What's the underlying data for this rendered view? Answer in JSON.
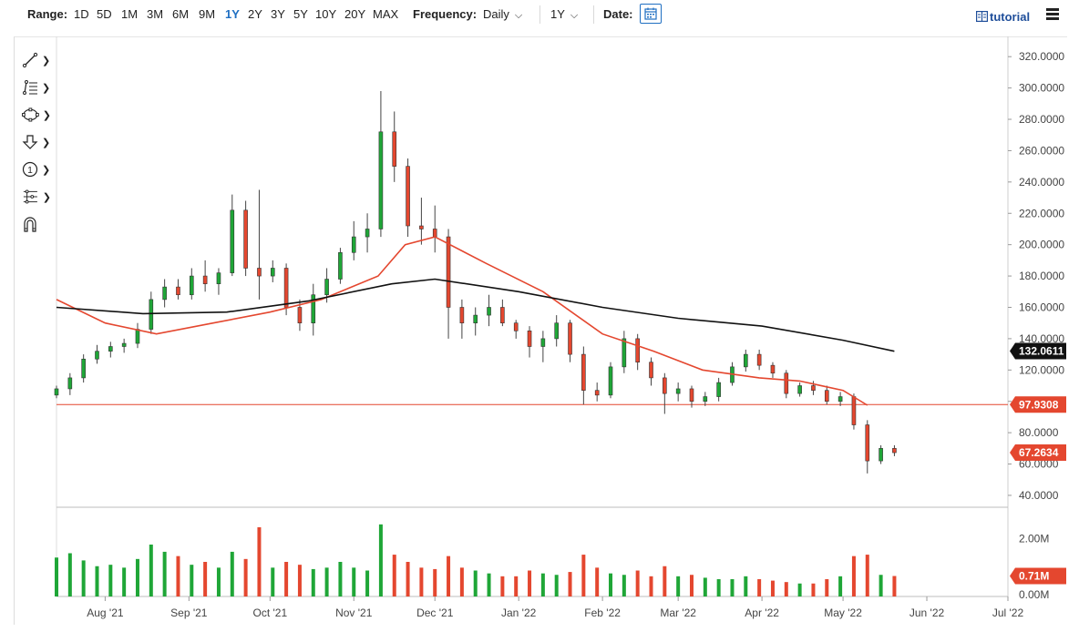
{
  "toolbar": {
    "range_label": "Range:",
    "ranges": [
      "1D",
      "5D",
      "1M",
      "3M",
      "6M",
      "9M",
      "1Y",
      "2Y",
      "3Y",
      "5Y",
      "10Y",
      "20Y",
      "MAX"
    ],
    "active_range": "1Y",
    "frequency_label": "Frequency:",
    "frequency_value": "Daily",
    "period_value": "1Y",
    "date_label": "Date:",
    "tutorial_label": "tutorial"
  },
  "tools": [
    "line-tool-icon",
    "fibonacci-tool-icon",
    "shape-tool-icon",
    "arrow-tool-icon",
    "counter-tool-icon",
    "measure-tool-icon",
    "magnet-icon"
  ],
  "colors": {
    "up": "#1fa637",
    "down": "#e4472f",
    "ma50": "#e4472f",
    "ma200": "#111111",
    "hline": "#e4472f",
    "accent": "#1f6fc2"
  },
  "chart_data": {
    "type": "candlestick",
    "x_ticks": [
      "Aug '21",
      "Sep '21",
      "Oct '21",
      "Nov '21",
      "Dec '21",
      "Jan '22",
      "Feb '22",
      "Mar '22",
      "Apr '22",
      "May '22",
      "Jun '22",
      "Jul '22"
    ],
    "x_tick_dates": [
      "2021-08-01",
      "2021-09-01",
      "2021-10-01",
      "2021-11-01",
      "2021-12-01",
      "2022-01-01",
      "2022-02-01",
      "2022-03-01",
      "2022-04-01",
      "2022-05-01",
      "2022-06-01",
      "2022-07-01"
    ],
    "y_ticks": [
      "320.0000",
      "300.0000",
      "280.0000",
      "260.0000",
      "240.0000",
      "220.0000",
      "200.0000",
      "180.0000",
      "160.0000",
      "140.0000",
      "120.0000",
      "100.0000",
      "80.0000",
      "60.0000",
      "40.0000"
    ],
    "ylim": [
      33,
      330
    ],
    "volume_ticks": [
      "2.00M",
      "0.00M"
    ],
    "volume_lim": [
      0,
      3.0
    ],
    "labels": {
      "ma200_last": "132.0611",
      "hline": "97.9308",
      "last_price": "67.2634",
      "last_volume": "0.71M"
    },
    "horizontal_line": 97.9308,
    "ma50_points": [
      [
        "2021-07-14",
        165
      ],
      [
        "2021-08-01",
        150
      ],
      [
        "2021-08-20",
        143
      ],
      [
        "2021-09-10",
        150
      ],
      [
        "2021-10-01",
        157
      ],
      [
        "2021-10-20",
        165
      ],
      [
        "2021-11-10",
        180
      ],
      [
        "2021-11-20",
        200
      ],
      [
        "2021-12-01",
        205
      ],
      [
        "2021-12-20",
        188
      ],
      [
        "2022-01-10",
        170
      ],
      [
        "2022-02-01",
        143
      ],
      [
        "2022-02-20",
        132
      ],
      [
        "2022-03-10",
        120
      ],
      [
        "2022-03-31",
        115
      ],
      [
        "2022-04-15",
        113
      ],
      [
        "2022-05-01",
        107
      ],
      [
        "2022-05-10",
        97.5
      ]
    ],
    "ma200_points": [
      [
        "2021-07-14",
        160
      ],
      [
        "2021-08-15",
        156
      ],
      [
        "2021-09-15",
        157
      ],
      [
        "2021-10-15",
        164
      ],
      [
        "2021-11-15",
        175
      ],
      [
        "2021-12-01",
        178
      ],
      [
        "2022-01-01",
        170
      ],
      [
        "2022-02-01",
        160
      ],
      [
        "2022-03-01",
        153
      ],
      [
        "2022-04-01",
        148
      ],
      [
        "2022-05-01",
        139
      ],
      [
        "2022-05-20",
        132
      ]
    ],
    "candles": [
      [
        "2021-07-14",
        104,
        110,
        102,
        108
      ],
      [
        "2021-07-19",
        108,
        118,
        104,
        115
      ],
      [
        "2021-07-24",
        115,
        130,
        112,
        127
      ],
      [
        "2021-07-29",
        127,
        136,
        124,
        132
      ],
      [
        "2021-08-03",
        132,
        138,
        128,
        135
      ],
      [
        "2021-08-08",
        135,
        140,
        131,
        137
      ],
      [
        "2021-08-13",
        137,
        150,
        134,
        146
      ],
      [
        "2021-08-18",
        146,
        170,
        143,
        165
      ],
      [
        "2021-08-23",
        165,
        178,
        160,
        173
      ],
      [
        "2021-08-28",
        173,
        178,
        165,
        168
      ],
      [
        "2021-09-02",
        168,
        185,
        165,
        180
      ],
      [
        "2021-09-07",
        180,
        190,
        170,
        175
      ],
      [
        "2021-09-12",
        175,
        185,
        168,
        182
      ],
      [
        "2021-09-17",
        182,
        232,
        180,
        222
      ],
      [
        "2021-09-22",
        222,
        228,
        180,
        185
      ],
      [
        "2021-09-27",
        185,
        235,
        165,
        180
      ],
      [
        "2021-10-02",
        180,
        190,
        176,
        185
      ],
      [
        "2021-10-07",
        185,
        188,
        155,
        160
      ],
      [
        "2021-10-12",
        160,
        165,
        145,
        150
      ],
      [
        "2021-10-17",
        150,
        175,
        142,
        168
      ],
      [
        "2021-10-22",
        168,
        185,
        163,
        178
      ],
      [
        "2021-10-27",
        178,
        198,
        175,
        195
      ],
      [
        "2021-11-01",
        195,
        215,
        190,
        205
      ],
      [
        "2021-11-06",
        205,
        220,
        195,
        210
      ],
      [
        "2021-11-11",
        210,
        298,
        205,
        272
      ],
      [
        "2021-11-16",
        272,
        285,
        240,
        250
      ],
      [
        "2021-11-21",
        250,
        255,
        205,
        212
      ],
      [
        "2021-11-26",
        212,
        230,
        200,
        210
      ],
      [
        "2021-12-01",
        210,
        225,
        195,
        205
      ],
      [
        "2021-12-06",
        205,
        210,
        140,
        160
      ],
      [
        "2021-12-11",
        160,
        165,
        140,
        150
      ],
      [
        "2021-12-16",
        150,
        160,
        142,
        155
      ],
      [
        "2021-12-21",
        155,
        168,
        148,
        160
      ],
      [
        "2021-12-26",
        160,
        165,
        148,
        150
      ],
      [
        "2021-12-31",
        150,
        152,
        140,
        145
      ],
      [
        "2022-01-05",
        145,
        148,
        128,
        135
      ],
      [
        "2022-01-10",
        135,
        145,
        125,
        140
      ],
      [
        "2022-01-15",
        140,
        155,
        135,
        150
      ],
      [
        "2022-01-20",
        150,
        152,
        125,
        130
      ],
      [
        "2022-01-25",
        130,
        135,
        98,
        107
      ],
      [
        "2022-01-30",
        107,
        112,
        100,
        104
      ],
      [
        "2022-02-04",
        104,
        125,
        102,
        122
      ],
      [
        "2022-02-09",
        122,
        145,
        118,
        140
      ],
      [
        "2022-02-14",
        140,
        143,
        120,
        125
      ],
      [
        "2022-02-19",
        125,
        128,
        110,
        115
      ],
      [
        "2022-02-24",
        115,
        118,
        92,
        105
      ],
      [
        "2022-03-01",
        105,
        112,
        100,
        108
      ],
      [
        "2022-03-06",
        108,
        110,
        96,
        100
      ],
      [
        "2022-03-11",
        100,
        106,
        97,
        103
      ],
      [
        "2022-03-16",
        103,
        115,
        100,
        112
      ],
      [
        "2022-03-21",
        112,
        125,
        110,
        122
      ],
      [
        "2022-03-26",
        122,
        133,
        119,
        130
      ],
      [
        "2022-03-31",
        130,
        133,
        120,
        123
      ],
      [
        "2022-04-05",
        123,
        125,
        115,
        118
      ],
      [
        "2022-04-10",
        118,
        120,
        102,
        105
      ],
      [
        "2022-04-15",
        105,
        112,
        103,
        110
      ],
      [
        "2022-04-20",
        110,
        113,
        104,
        107
      ],
      [
        "2022-04-25",
        107,
        110,
        98,
        100
      ],
      [
        "2022-04-30",
        100,
        106,
        97,
        103
      ],
      [
        "2022-05-05",
        103,
        105,
        82,
        85
      ],
      [
        "2022-05-10",
        85,
        88,
        54,
        62
      ],
      [
        "2022-05-15",
        62,
        72,
        60,
        70
      ],
      [
        "2022-05-20",
        70,
        72,
        65,
        67.26
      ]
    ],
    "volume": [
      [
        "2021-07-14",
        1.35
      ],
      [
        "2021-07-19",
        1.5
      ],
      [
        "2021-07-24",
        1.25
      ],
      [
        "2021-07-29",
        1.05
      ],
      [
        "2021-08-03",
        1.1
      ],
      [
        "2021-08-08",
        1.0
      ],
      [
        "2021-08-13",
        1.3
      ],
      [
        "2021-08-18",
        1.8
      ],
      [
        "2021-08-23",
        1.55
      ],
      [
        "2021-08-28",
        1.4
      ],
      [
        "2021-09-02",
        1.1
      ],
      [
        "2021-09-07",
        1.2
      ],
      [
        "2021-09-12",
        1.0
      ],
      [
        "2021-09-17",
        1.55
      ],
      [
        "2021-09-22",
        1.3
      ],
      [
        "2021-09-27",
        2.4
      ],
      [
        "2021-10-02",
        1.0
      ],
      [
        "2021-10-07",
        1.2
      ],
      [
        "2021-10-12",
        1.1
      ],
      [
        "2021-10-17",
        0.95
      ],
      [
        "2021-10-22",
        1.0
      ],
      [
        "2021-10-27",
        1.2
      ],
      [
        "2021-11-01",
        1.0
      ],
      [
        "2021-11-06",
        0.9
      ],
      [
        "2021-11-11",
        2.5
      ],
      [
        "2021-11-16",
        1.45
      ],
      [
        "2021-11-21",
        1.2
      ],
      [
        "2021-11-26",
        1.0
      ],
      [
        "2021-12-01",
        0.95
      ],
      [
        "2021-12-06",
        1.4
      ],
      [
        "2021-12-11",
        1.0
      ],
      [
        "2021-12-16",
        0.9
      ],
      [
        "2021-12-21",
        0.8
      ],
      [
        "2021-12-26",
        0.7
      ],
      [
        "2021-12-31",
        0.7
      ],
      [
        "2022-01-05",
        0.9
      ],
      [
        "2022-01-10",
        0.8
      ],
      [
        "2022-01-15",
        0.75
      ],
      [
        "2022-01-20",
        0.85
      ],
      [
        "2022-01-25",
        1.45
      ],
      [
        "2022-01-30",
        1.0
      ],
      [
        "2022-02-04",
        0.8
      ],
      [
        "2022-02-09",
        0.75
      ],
      [
        "2022-02-14",
        0.9
      ],
      [
        "2022-02-19",
        0.7
      ],
      [
        "2022-02-24",
        1.05
      ],
      [
        "2022-03-01",
        0.7
      ],
      [
        "2022-03-06",
        0.75
      ],
      [
        "2022-03-11",
        0.65
      ],
      [
        "2022-03-16",
        0.6
      ],
      [
        "2022-03-21",
        0.6
      ],
      [
        "2022-03-26",
        0.7
      ],
      [
        "2022-03-31",
        0.6
      ],
      [
        "2022-04-05",
        0.55
      ],
      [
        "2022-04-10",
        0.5
      ],
      [
        "2022-04-15",
        0.45
      ],
      [
        "2022-04-20",
        0.45
      ],
      [
        "2022-04-25",
        0.6
      ],
      [
        "2022-04-30",
        0.7
      ],
      [
        "2022-05-05",
        1.4
      ],
      [
        "2022-05-10",
        1.45
      ],
      [
        "2022-05-15",
        0.75
      ],
      [
        "2022-05-20",
        0.71
      ]
    ]
  }
}
